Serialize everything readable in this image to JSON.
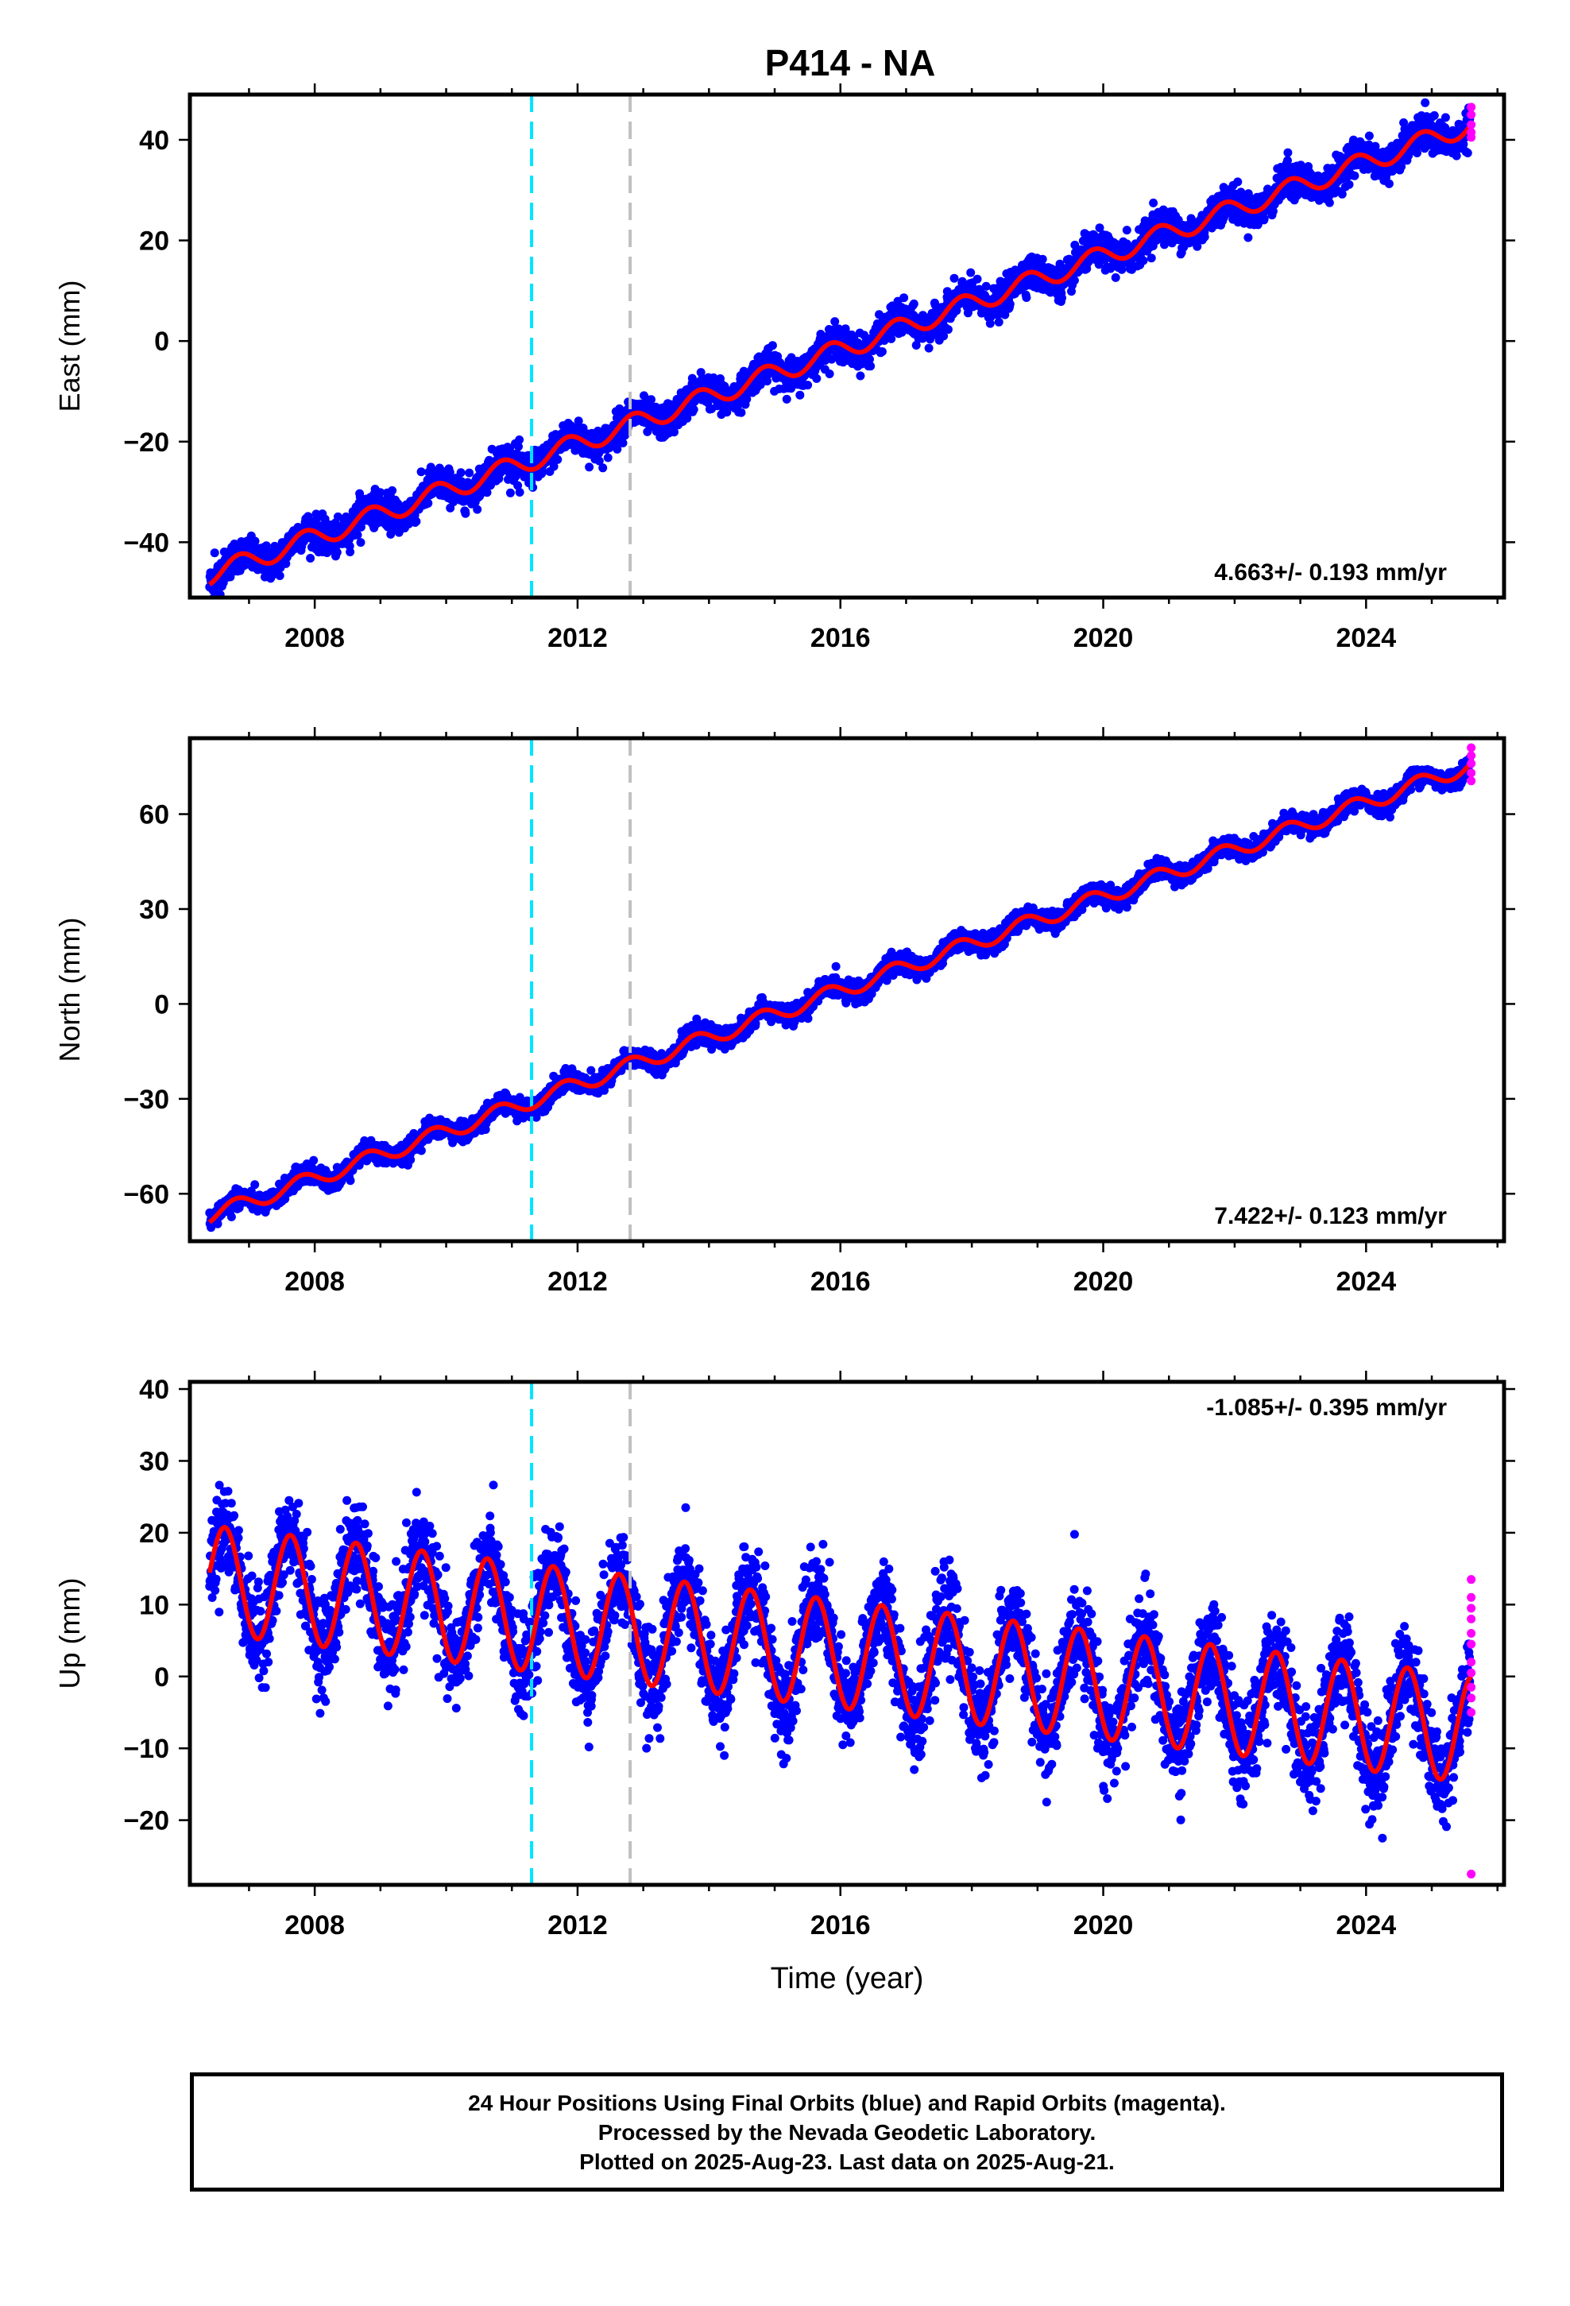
{
  "title": "P414 - NA",
  "colors": {
    "final_orbits": "#0000ff",
    "rapid_orbits": "#ff00ff",
    "model": "#ff0000",
    "event_line_1": "#00e5ff",
    "event_line_2": "#c0c0c0"
  },
  "footer": {
    "line1": "24 Hour Positions Using Final Orbits (blue) and Rapid Orbits (magenta).",
    "line2": "Processed by the Nevada Geodetic Laboratory.",
    "line3": "Plotted on 2025-Aug-23. Last data on 2025-Aug-21."
  },
  "chart_data": [
    {
      "type": "scatter",
      "component": "East",
      "ylabel": "East (mm)",
      "xlabel": "",
      "xlim": [
        2006.1,
        2026.1
      ],
      "ylim": [
        -51,
        49
      ],
      "xticks": [
        2008,
        2012,
        2016,
        2020,
        2024
      ],
      "yticks": [
        -40,
        -20,
        0,
        20,
        40
      ],
      "rate_label": "4.663+/- 0.193 mm/yr",
      "rate_label_position": "bottom-right",
      "vertical_lines": [
        2011.3,
        2012.8
      ],
      "data_range": [
        2006.4,
        2025.6
      ],
      "model": {
        "intercept": -46.5,
        "rate": 4.663,
        "annual_amplitude": 2.0,
        "annual_phase": 0.6
      },
      "rapid_points": [
        [
          2025.6,
          46.5
        ],
        [
          2025.6,
          45.0
        ],
        [
          2025.6,
          43.0
        ],
        [
          2025.6,
          41.5
        ],
        [
          2025.6,
          40.5
        ]
      ],
      "scatter_noise": 1.6,
      "grid": false
    },
    {
      "type": "scatter",
      "component": "North",
      "ylabel": "North (mm)",
      "xlabel": "",
      "xlim": [
        2006.1,
        2026.1
      ],
      "ylim": [
        -75,
        84
      ],
      "xticks": [
        2008,
        2012,
        2016,
        2020,
        2024
      ],
      "yticks": [
        -60,
        -30,
        0,
        30,
        60
      ],
      "rate_label": "7.422+/- 0.123 mm/yr",
      "rate_label_position": "bottom-right",
      "vertical_lines": [
        2011.3,
        2012.8
      ],
      "data_range": [
        2006.4,
        2025.6
      ],
      "model": {
        "intercept": -67.0,
        "rate": 7.422,
        "annual_amplitude": 2.5,
        "annual_phase": 0.55
      },
      "rapid_points": [
        [
          2025.6,
          81.0
        ],
        [
          2025.6,
          78.5
        ],
        [
          2025.6,
          76.0
        ],
        [
          2025.6,
          73.0
        ],
        [
          2025.6,
          70.5
        ]
      ],
      "scatter_noise": 1.5,
      "grid": false
    },
    {
      "type": "scatter",
      "component": "Up",
      "ylabel": "Up (mm)",
      "xlabel": "Time (year)",
      "xlim": [
        2006.1,
        2026.1
      ],
      "ylim": [
        -29,
        41
      ],
      "xticks": [
        2008,
        2012,
        2016,
        2020,
        2024
      ],
      "yticks": [
        -20,
        -10,
        0,
        10,
        20,
        30,
        40
      ],
      "rate_label": "-1.085+/- 0.395 mm/yr",
      "rate_label_position": "top-right",
      "vertical_lines": [
        2011.3,
        2012.8
      ],
      "data_range": [
        2006.4,
        2025.6
      ],
      "model": {
        "intercept": 13.5,
        "rate": -1.085,
        "annual_amplitude": 7.5,
        "annual_phase": 0.38
      },
      "rapid_points": [
        [
          2025.6,
          13.5
        ],
        [
          2025.6,
          11.0
        ],
        [
          2025.6,
          9.5
        ],
        [
          2025.6,
          8.0
        ],
        [
          2025.6,
          6.0
        ],
        [
          2025.6,
          4.5
        ],
        [
          2025.6,
          2.0
        ],
        [
          2025.6,
          0.5
        ],
        [
          2025.6,
          -1.5
        ],
        [
          2025.6,
          -3.0
        ],
        [
          2025.6,
          -5.0
        ],
        [
          2025.6,
          -27.5
        ]
      ],
      "scatter_noise": 3.2,
      "grid": false
    }
  ]
}
